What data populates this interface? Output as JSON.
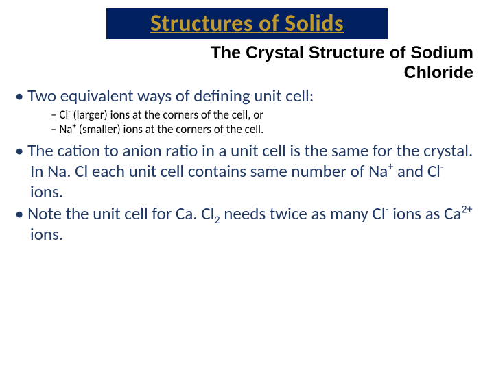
{
  "title": "Structures of Solids",
  "subtitle_line1": "The Crystal Structure of Sodium",
  "subtitle_line2": "Chloride",
  "bullets": {
    "b1": "Two equivalent ways of defining unit cell:",
    "b1_sub1_a": "Cl",
    "b1_sub1_sup": "-",
    "b1_sub1_b": " (larger) ions at the corners of the cell, or",
    "b1_sub2_a": "Na",
    "b1_sub2_sup": "+",
    "b1_sub2_b": " (smaller) ions at the corners of the cell.",
    "b2_a": "The cation to anion ratio in a unit cell is the same for the crystal.  In Na. Cl each unit cell contains same number of Na",
    "b2_sup1": "+",
    "b2_b": " and Cl",
    "b2_sup2": "-",
    "b2_c": " ions.",
    "b3_a": "Note the unit cell for Ca. Cl",
    "b3_sub1": "2",
    "b3_b": " needs twice as many Cl",
    "b3_sup1": "-",
    "b3_c": " ions as Ca",
    "b3_sup2": "2+",
    "b3_d": " ions."
  },
  "colors": {
    "title_bg": "#002060",
    "title_fg": "#c09a2f",
    "bullet_fg": "#1f3864",
    "sub_fg": "#000000",
    "slide_bg": "#ffffff"
  },
  "fonts": {
    "title_size": 34,
    "subtitle_size": 25,
    "bullet_size": 25,
    "sub_size": 17
  }
}
